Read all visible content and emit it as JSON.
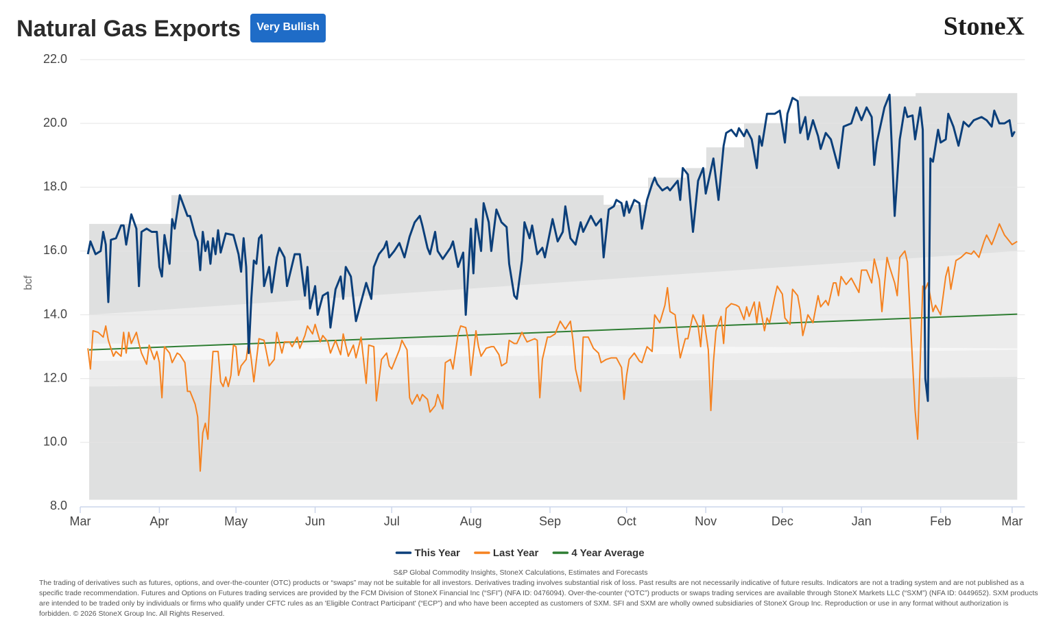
{
  "chart_data": {
    "type": "line",
    "title": "Natural Gas Exports",
    "badge": "Very Bullish",
    "logo": "StoneX",
    "y_label": "bcf",
    "xlim": [
      0,
      370
    ],
    "xticks": [
      {
        "value": 0,
        "label": "Mar"
      },
      {
        "value": 31,
        "label": "Apr"
      },
      {
        "value": 61,
        "label": "May"
      },
      {
        "value": 92,
        "label": "Jun"
      },
      {
        "value": 122,
        "label": "Jul"
      },
      {
        "value": 153,
        "label": "Aug"
      },
      {
        "value": 184,
        "label": "Sep"
      },
      {
        "value": 214,
        "label": "Oct"
      },
      {
        "value": 245,
        "label": "Nov"
      },
      {
        "value": 275,
        "label": "Dec"
      },
      {
        "value": 306,
        "label": "Jan"
      },
      {
        "value": 337,
        "label": "Feb"
      },
      {
        "value": 365,
        "label": "Mar"
      }
    ],
    "ylim": [
      8,
      22
    ],
    "yticks": [
      {
        "value": 8,
        "label": "8.0"
      },
      {
        "value": 10,
        "label": "10.0"
      },
      {
        "value": 12,
        "label": "12.0"
      },
      {
        "value": 14,
        "label": "14.0"
      },
      {
        "value": 16,
        "label": "16.0"
      },
      {
        "value": 18,
        "label": "18.0"
      },
      {
        "value": 20,
        "label": "20.0"
      },
      {
        "value": 22,
        "label": "22.0"
      }
    ],
    "grid": true,
    "bands": [
      {
        "color": "#dfe0e0",
        "x": [
          3.5,
          35.7,
          35.7,
          205,
          205,
          222.4,
          222.4,
          237.2,
          237.2,
          245.2,
          245.2,
          260,
          260,
          281.5,
          281.5,
          327.2,
          327.2,
          367
        ],
        "upper": [
          16.85,
          16.85,
          17.75,
          17.75,
          17.45,
          17.45,
          18.3,
          18.3,
          18.6,
          18.6,
          19.25,
          19.25,
          20.0,
          20.0,
          20.85,
          20.85,
          20.95,
          20.95
        ],
        "lower": [
          8.2,
          8.2,
          8.2,
          8.2,
          8.2,
          8.2,
          8.2,
          8.2,
          8.2,
          8.2,
          8.2,
          8.2,
          8.2,
          8.2,
          8.2,
          8.2,
          8.2,
          8.2
        ]
      },
      {
        "color": "#ececec",
        "x": [
          3.5,
          367
        ],
        "upper": [
          14.0,
          16.0
        ],
        "lower": [
          11.75,
          12.05
        ]
      },
      {
        "color": "#f6f6f6",
        "x": [
          3.5,
          367
        ],
        "upper": [
          13.1,
          12.95
        ],
        "lower": [
          12.55,
          12.9
        ]
      }
    ],
    "series": [
      {
        "name": "This Year",
        "color": "#0b3f7a",
        "x": [
          3,
          4,
          6,
          8,
          9,
          10,
          11,
          12,
          14,
          16,
          17,
          18,
          20,
          22,
          23,
          24,
          26,
          28,
          30,
          31,
          32,
          33,
          35,
          36,
          37,
          39,
          42,
          43,
          45,
          46,
          47,
          48,
          49,
          50,
          51,
          52,
          53,
          54,
          55,
          57,
          60,
          62,
          63,
          64,
          65,
          66,
          67,
          68,
          69,
          70,
          71,
          72,
          74,
          75,
          77,
          78,
          80,
          81,
          84,
          86,
          88,
          89,
          90,
          92,
          93,
          95,
          97,
          98,
          100,
          102,
          103,
          104,
          106,
          108,
          110,
          111,
          112,
          114,
          115,
          117,
          119,
          120,
          121,
          123,
          125,
          127,
          129,
          131,
          133,
          134,
          136,
          137,
          139,
          140,
          142,
          145,
          146,
          148,
          150,
          151,
          153,
          154,
          155,
          157,
          158,
          160,
          161,
          163,
          165,
          167,
          168,
          170,
          171,
          173,
          174,
          176,
          177,
          179,
          181,
          182,
          183,
          185,
          187,
          189,
          190,
          192,
          194,
          196,
          197,
          200,
          202,
          204,
          205,
          207,
          209,
          210,
          212,
          213,
          214,
          215,
          217,
          219,
          220,
          222,
          224,
          225,
          226,
          228,
          230,
          231,
          234,
          235,
          236,
          238,
          240,
          242,
          244,
          245,
          248,
          250,
          252,
          253,
          255,
          257,
          258,
          260,
          261,
          263,
          265,
          266,
          267,
          269,
          272,
          274,
          276,
          277,
          279,
          281,
          282,
          284,
          285,
          287,
          289,
          290,
          292,
          294,
          297,
          299,
          302,
          304,
          306,
          308,
          310,
          311,
          312,
          315,
          317,
          319,
          321,
          323,
          324,
          326,
          327,
          329,
          330,
          331,
          332,
          333,
          334,
          336,
          337,
          339,
          340,
          342,
          344,
          346,
          348,
          350,
          353,
          355,
          357,
          358,
          360,
          362,
          364,
          365,
          366
        ],
        "values": [
          15.9,
          16.3,
          15.9,
          16.0,
          16.6,
          16.2,
          14.4,
          16.35,
          16.4,
          16.8,
          16.8,
          16.2,
          17.15,
          16.7,
          14.9,
          16.6,
          16.7,
          16.6,
          16.6,
          15.5,
          15.2,
          16.5,
          15.6,
          17.0,
          16.7,
          17.75,
          17.1,
          17.1,
          16.5,
          16.3,
          15.4,
          16.6,
          16.0,
          16.3,
          15.6,
          16.4,
          15.9,
          16.65,
          15.95,
          16.55,
          16.5,
          15.9,
          15.35,
          16.4,
          15.5,
          12.8,
          14.5,
          15.7,
          15.6,
          16.4,
          16.5,
          14.9,
          15.5,
          14.7,
          15.8,
          16.1,
          15.8,
          14.9,
          15.9,
          15.9,
          14.6,
          15.5,
          14.2,
          14.9,
          14.0,
          14.6,
          14.7,
          13.6,
          14.8,
          15.2,
          14.5,
          15.5,
          15.2,
          13.8,
          14.4,
          14.7,
          15.0,
          14.5,
          15.5,
          15.9,
          16.1,
          16.3,
          15.8,
          16.0,
          16.25,
          15.8,
          16.45,
          16.9,
          17.1,
          16.8,
          16.1,
          15.9,
          16.6,
          16.0,
          15.75,
          16.1,
          16.3,
          15.5,
          15.95,
          14.0,
          16.7,
          15.3,
          17.0,
          16.0,
          17.5,
          16.9,
          16.0,
          17.3,
          16.9,
          16.75,
          15.6,
          14.6,
          14.5,
          15.7,
          16.9,
          16.4,
          16.8,
          15.9,
          16.1,
          15.8,
          16.2,
          17.0,
          16.3,
          16.6,
          17.4,
          16.4,
          16.2,
          16.9,
          16.6,
          17.1,
          16.8,
          17.0,
          15.8,
          17.3,
          17.4,
          17.6,
          17.5,
          17.1,
          17.55,
          17.2,
          17.6,
          17.5,
          16.7,
          17.6,
          18.1,
          18.3,
          18.1,
          17.9,
          18.0,
          17.9,
          18.2,
          17.6,
          18.6,
          18.4,
          16.6,
          18.2,
          18.6,
          17.8,
          18.9,
          17.6,
          19.3,
          19.7,
          19.8,
          19.6,
          19.85,
          19.6,
          19.8,
          19.5,
          18.6,
          19.6,
          19.3,
          20.3,
          20.3,
          20.4,
          19.4,
          20.3,
          20.8,
          20.7,
          19.7,
          20.2,
          19.5,
          20.1,
          19.6,
          19.2,
          19.7,
          19.5,
          18.6,
          19.9,
          20.0,
          20.5,
          20.1,
          20.5,
          20.2,
          18.7,
          19.4,
          20.5,
          20.9,
          17.1,
          19.5,
          20.5,
          20.2,
          20.25,
          19.5,
          20.5,
          19.8,
          12.0,
          11.3,
          18.9,
          18.8,
          19.8,
          19.4,
          19.5,
          20.3,
          19.9,
          19.3,
          20.05,
          19.9,
          20.1,
          20.2,
          20.1,
          19.9,
          20.4,
          20.0,
          20.0,
          20.1,
          19.6,
          19.75
        ]
      },
      {
        "name": "Last Year",
        "color": "#f58220",
        "x": [
          3,
          4,
          5,
          7,
          9,
          10,
          11,
          13,
          14,
          16,
          17,
          18,
          19,
          20,
          22,
          23,
          24,
          26,
          27,
          29,
          30,
          31,
          32,
          33,
          35,
          36,
          38,
          39,
          41,
          42,
          43,
          45,
          46,
          47,
          48,
          49,
          50,
          51,
          52,
          54,
          55,
          56,
          57,
          58,
          59,
          60,
          61,
          62,
          63,
          65,
          66,
          67,
          68,
          70,
          72,
          74,
          76,
          77,
          79,
          80,
          82,
          83,
          85,
          86,
          88,
          89,
          91,
          92,
          94,
          95,
          97,
          98,
          100,
          102,
          103,
          105,
          107,
          108,
          110,
          112,
          113,
          115,
          116,
          118,
          120,
          121,
          122,
          125,
          126,
          128,
          129,
          130,
          132,
          133,
          134,
          136,
          137,
          139,
          140,
          142,
          143,
          145,
          146,
          148,
          149,
          151,
          152,
          153,
          155,
          156,
          157,
          159,
          161,
          162,
          164,
          165,
          167,
          168,
          170,
          171,
          173,
          175,
          178,
          179,
          180,
          181,
          183,
          184,
          186,
          188,
          190,
          192,
          193,
          194,
          196,
          197,
          199,
          201,
          203,
          204,
          206,
          208,
          210,
          212,
          213,
          214,
          215,
          217,
          219,
          220,
          222,
          224,
          225,
          227,
          229,
          230,
          231,
          233,
          234,
          235,
          237,
          238,
          240,
          242,
          243,
          244,
          246,
          247,
          248,
          249,
          251,
          252,
          253,
          255,
          257,
          258,
          260,
          261,
          262,
          264,
          265,
          266,
          268,
          269,
          270,
          272,
          273,
          275,
          276,
          278,
          279,
          281,
          282,
          283,
          285,
          287,
          289,
          290,
          292,
          293,
          295,
          296,
          297,
          298,
          300,
          302,
          303,
          305,
          306,
          308,
          310,
          311,
          313,
          314,
          316,
          317,
          319,
          320,
          321,
          323,
          324,
          326,
          327,
          328,
          330,
          331,
          332,
          334,
          335,
          337,
          339,
          340,
          341,
          343,
          345,
          347,
          349,
          350,
          352,
          354,
          355,
          357,
          358,
          360,
          362,
          363,
          365,
          367
        ],
        "values": [
          12.95,
          12.3,
          13.5,
          13.45,
          13.3,
          13.65,
          13.2,
          12.7,
          12.85,
          12.7,
          13.45,
          12.8,
          13.45,
          13.1,
          13.45,
          13.1,
          12.8,
          12.45,
          13.05,
          12.6,
          12.85,
          12.5,
          11.4,
          13.0,
          12.8,
          12.5,
          12.8,
          12.75,
          12.5,
          11.6,
          11.6,
          11.2,
          10.8,
          9.1,
          10.3,
          10.6,
          10.1,
          11.7,
          12.85,
          12.85,
          11.9,
          11.75,
          12.05,
          11.75,
          12.1,
          13.05,
          13.0,
          12.1,
          12.4,
          12.6,
          13.2,
          12.6,
          11.9,
          13.25,
          13.2,
          12.4,
          12.6,
          13.45,
          12.8,
          13.15,
          13.15,
          13.0,
          13.3,
          12.95,
          13.35,
          13.65,
          13.4,
          13.7,
          13.15,
          13.35,
          13.15,
          12.8,
          13.2,
          12.75,
          13.4,
          12.7,
          13.05,
          12.65,
          13.3,
          11.85,
          13.05,
          13.0,
          11.3,
          12.6,
          12.8,
          12.4,
          12.3,
          12.9,
          13.2,
          12.9,
          11.4,
          11.2,
          11.5,
          11.3,
          11.5,
          11.35,
          10.95,
          11.15,
          11.5,
          11.05,
          12.5,
          12.6,
          12.3,
          13.4,
          13.65,
          13.6,
          13.2,
          12.1,
          13.5,
          13.0,
          12.7,
          12.95,
          13.0,
          13.0,
          12.75,
          12.4,
          12.5,
          13.2,
          13.1,
          13.1,
          13.45,
          13.15,
          13.25,
          13.2,
          11.4,
          12.6,
          13.3,
          13.3,
          13.4,
          13.8,
          13.55,
          13.8,
          13.2,
          12.3,
          11.6,
          13.3,
          13.3,
          12.95,
          12.8,
          12.5,
          12.6,
          12.65,
          12.65,
          12.35,
          11.35,
          12.1,
          12.6,
          12.8,
          12.55,
          12.5,
          13.0,
          12.85,
          14.0,
          13.75,
          14.3,
          14.85,
          14.1,
          14.0,
          13.3,
          12.65,
          13.25,
          13.25,
          14.0,
          13.65,
          13.0,
          14.0,
          12.9,
          11.0,
          12.5,
          13.5,
          13.95,
          13.1,
          14.2,
          14.35,
          14.3,
          14.25,
          13.85,
          14.25,
          13.95,
          14.4,
          13.75,
          14.4,
          13.5,
          13.9,
          13.75,
          14.55,
          14.9,
          14.65,
          13.9,
          13.7,
          14.8,
          14.6,
          14.15,
          13.35,
          14.0,
          13.75,
          14.6,
          14.25,
          14.45,
          14.3,
          15.0,
          15.0,
          14.6,
          15.2,
          14.95,
          15.15,
          15.0,
          14.7,
          15.4,
          15.4,
          15.0,
          15.75,
          15.1,
          14.1,
          15.8,
          15.5,
          15.0,
          14.6,
          15.8,
          16.0,
          15.65,
          12.5,
          11.0,
          10.1,
          14.9,
          14.8,
          15.0,
          14.1,
          14.3,
          14.0,
          15.2,
          15.5,
          14.8,
          15.7,
          15.8,
          15.95,
          15.9,
          16.0,
          15.8,
          16.3,
          16.5,
          16.2,
          16.4,
          16.85,
          16.5,
          16.4,
          16.2,
          16.3
        ]
      },
      {
        "name": "4 Year Average",
        "color": "#2e7d32",
        "x": [
          3.5,
          367
        ],
        "values": [
          12.9,
          14.02
        ]
      }
    ],
    "legend": "bottom",
    "source": "S&P Global Commodity Insights, StoneX Calculations, Estimates and Forecasts",
    "disclaimer": "The trading of derivatives such as futures, options, and over-the-counter (OTC) products or “swaps” may not be suitable for all investors. Derivatives trading involves substantial risk of loss. Past results are not necessarily indicative of future results. Indicators are not a trading system and are not published as a specific trade recommendation. Futures and Options on Futures trading services are provided by the FCM Division of StoneX Financial Inc (“SFI”) (NFA ID: 0476094). Over-the-counter (“OTC”) products or swaps trading services are available through StoneX Markets LLC (“SXM”) (NFA ID: 0449652). SXM products are intended to be traded only by individuals or firms who qualify under CFTC rules as an 'Eligible Contract Participant' (“ECP”) and who have been accepted as customers of SXM. SFI and SXM are wholly owned subsidiaries of StoneX Group Inc. Reproduction or use in any format without authorization is forbidden. © 2026 StoneX Group Inc. All Rights Reserved."
  }
}
